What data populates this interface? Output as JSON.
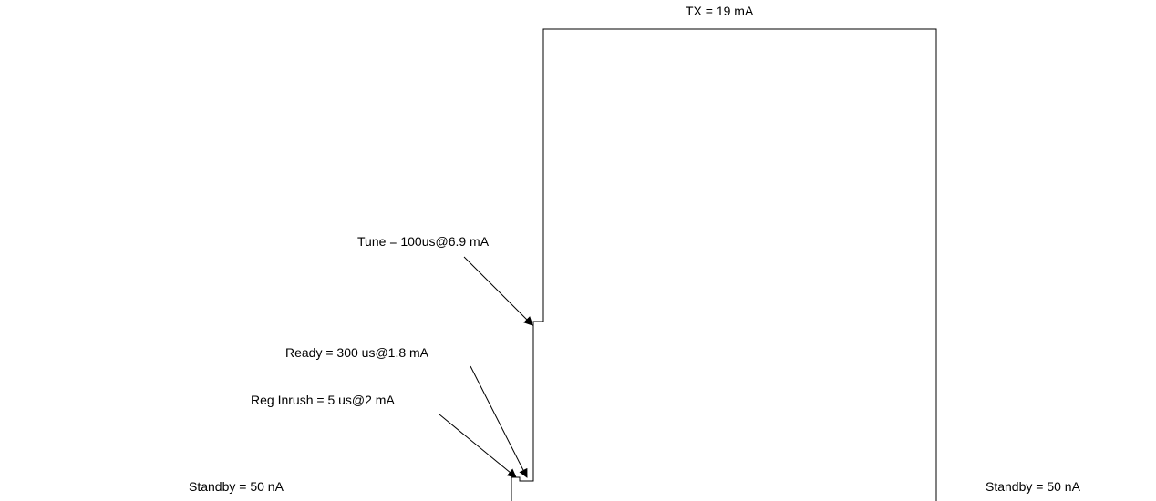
{
  "diagram": {
    "labels": {
      "tx": "TX = 19 mA",
      "tune": "Tune = 100us@6.9 mA",
      "ready": "Ready = 300 us@1.8 mA",
      "reg_inrush": "Reg Inrush = 5 us@2 mA",
      "standby_left": "Standby = 50 nA",
      "standby_right": "Standby = 50 nA"
    },
    "colors": {
      "line": "#000000",
      "background": "#ffffff"
    }
  }
}
